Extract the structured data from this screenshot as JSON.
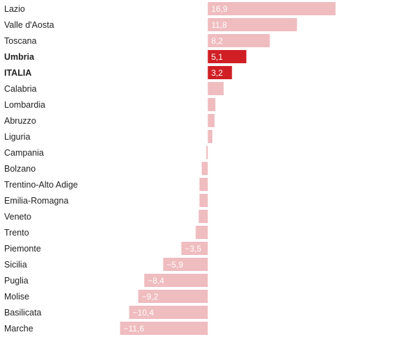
{
  "chart_data": {
    "type": "bar",
    "orientation": "horizontal",
    "categories": [
      "Lazio",
      "Valle d'Aosta",
      "Toscana",
      "Umbria",
      "ITALIA",
      "Calabria",
      "Lombardia",
      "Abruzzo",
      "Liguria",
      "Campania",
      "Bolzano",
      "Trentino-Alto Adige",
      "Emilia-Romagna",
      "Veneto",
      "Trento",
      "Piemonte",
      "Sicilia",
      "Puglia",
      "Molise",
      "Basilicata",
      "Marche"
    ],
    "values": [
      16.9,
      11.8,
      8.2,
      5.1,
      3.2,
      2.1,
      1.0,
      0.9,
      0.6,
      -0.2,
      -0.8,
      -1.1,
      -1.1,
      -1.2,
      -1.6,
      -3.5,
      -5.9,
      -8.4,
      -9.2,
      -10.4,
      -11.6
    ],
    "value_labels": [
      "16,9",
      "11,8",
      "8,2",
      "5,1",
      "3,2",
      "",
      "",
      "",
      "",
      "",
      "",
      "",
      "",
      "",
      "",
      "−3,5",
      "−5,9",
      "−8,4",
      "−9,2",
      "−10,4",
      "−11,6"
    ],
    "highlighted": [
      "Umbria",
      "ITALIA"
    ],
    "colors": {
      "bar": "#efbcbf",
      "highlight": "#cf1f25",
      "label": "#222222",
      "value_label": "#ffffff"
    },
    "title": "",
    "xlabel": "",
    "ylabel": "",
    "xlim": [
      -11.6,
      16.9
    ],
    "grid": false,
    "legend": "none"
  }
}
